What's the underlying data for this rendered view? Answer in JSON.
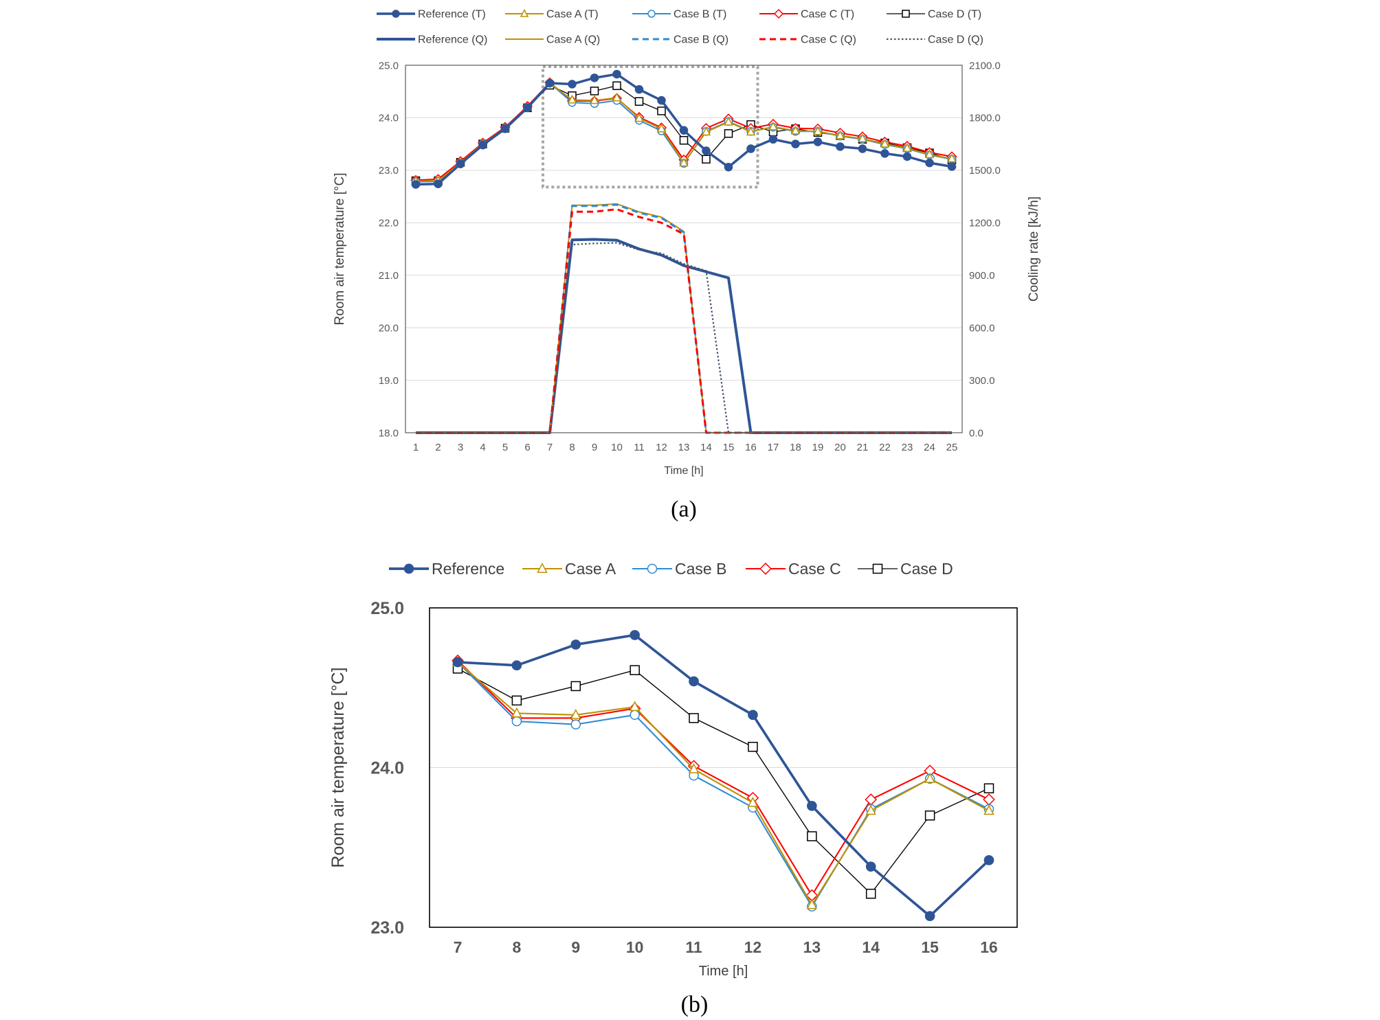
{
  "colors": {
    "reference": "#2F5597",
    "case_a": "#BF9000",
    "case_b": "#2E8BD4",
    "case_c": "#FF0000",
    "case_d": "#000000",
    "case_d_q": "#44546A",
    "grid": "#D9D9D9",
    "zoom_box": "#A6A6A6"
  },
  "chart_data": [
    {
      "type": "line",
      "panel_label": "(a)",
      "xlabel": "Time [h]",
      "ylabel": "Room air temperature  [°C]",
      "y2label": "Cooling rate [kJ/h]",
      "x": [
        1,
        2,
        3,
        4,
        5,
        6,
        7,
        8,
        9,
        10,
        11,
        12,
        13,
        14,
        15,
        16,
        17,
        18,
        19,
        20,
        21,
        22,
        23,
        24,
        25
      ],
      "x_tick_labels": [
        "1",
        "2",
        "3",
        "4",
        "5",
        "6",
        "7",
        "8",
        "9",
        "10",
        "11",
        "12",
        "13",
        "14",
        "15",
        "16",
        "17",
        "18",
        "19",
        "20",
        "21",
        "22",
        "23",
        "24",
        "25"
      ],
      "ylim": [
        18.0,
        25.0
      ],
      "y_tick_labels": [
        "18.0",
        "19.0",
        "20.0",
        "21.0",
        "22.0",
        "23.0",
        "24.0",
        "25.0"
      ],
      "y2lim": [
        0.0,
        2100.0
      ],
      "y2_tick_labels": [
        "0.0",
        "300.0",
        "600.0",
        "900.0",
        "1200.0",
        "1500.0",
        "1800.0",
        "2100.0"
      ],
      "grid": true,
      "legend_position": "top",
      "zoom_box": {
        "x_range": [
          7,
          16
        ],
        "y_range": [
          22.68,
          25.0
        ]
      },
      "series": [
        {
          "name": "Reference (T)",
          "color_key": "reference",
          "axis": "left",
          "style": "solid-thick",
          "marker": "filled-circle",
          "values": [
            22.73,
            22.74,
            23.12,
            23.48,
            23.79,
            24.19,
            24.66,
            24.64,
            24.76,
            24.83,
            24.54,
            24.33,
            23.76,
            23.37,
            23.06,
            23.41,
            23.59,
            23.5,
            23.54,
            23.45,
            23.41,
            23.32,
            23.26,
            23.14,
            23.07
          ]
        },
        {
          "name": "Case A (T)",
          "color_key": "case_a",
          "axis": "left",
          "style": "solid",
          "marker": "open-triangle",
          "values": [
            22.79,
            22.8,
            23.14,
            23.5,
            23.8,
            24.2,
            24.66,
            24.34,
            24.33,
            24.38,
            23.99,
            23.79,
            23.14,
            23.73,
            23.92,
            23.73,
            23.83,
            23.75,
            23.74,
            23.66,
            23.6,
            23.5,
            23.42,
            23.3,
            23.22
          ]
        },
        {
          "name": "Case B (T)",
          "color_key": "case_b",
          "axis": "left",
          "style": "solid",
          "marker": "open-circle",
          "values": [
            22.78,
            22.79,
            23.14,
            23.5,
            23.8,
            24.2,
            24.66,
            24.29,
            24.27,
            24.33,
            23.95,
            23.75,
            23.13,
            23.74,
            23.93,
            23.74,
            23.82,
            23.74,
            23.74,
            23.65,
            23.59,
            23.49,
            23.41,
            23.29,
            23.21
          ]
        },
        {
          "name": "Case C (T)",
          "color_key": "case_c",
          "axis": "left",
          "style": "solid",
          "marker": "open-diamond",
          "values": [
            22.81,
            22.83,
            23.17,
            23.52,
            23.82,
            24.22,
            24.67,
            24.32,
            24.32,
            24.37,
            24.01,
            23.81,
            23.2,
            23.8,
            23.98,
            23.8,
            23.88,
            23.8,
            23.79,
            23.71,
            23.64,
            23.54,
            23.46,
            23.34,
            23.26
          ]
        },
        {
          "name": "Case D (T)",
          "color_key": "case_d",
          "axis": "left",
          "style": "solid-thin",
          "marker": "open-square",
          "values": [
            22.8,
            22.8,
            23.15,
            23.5,
            23.8,
            24.19,
            24.62,
            24.42,
            24.51,
            24.61,
            24.31,
            24.13,
            23.57,
            23.21,
            23.7,
            23.87,
            23.73,
            23.79,
            23.72,
            23.66,
            23.59,
            23.52,
            23.43,
            23.33,
            23.2
          ]
        },
        {
          "name": "Reference (Q)",
          "color_key": "reference",
          "axis": "right",
          "style": "solid-heavy",
          "marker": "none",
          "values": [
            0,
            0,
            0,
            0,
            0,
            0,
            0,
            1102,
            1105,
            1100,
            1050,
            1015,
            955,
            920,
            885,
            0,
            0,
            0,
            0,
            0,
            0,
            0,
            0,
            0,
            0
          ]
        },
        {
          "name": "Case A (Q)",
          "color_key": "case_a",
          "axis": "right",
          "style": "solid",
          "marker": "none",
          "values": [
            0,
            0,
            0,
            0,
            0,
            0,
            0,
            1300,
            1300,
            1308,
            1262,
            1232,
            1150,
            0,
            0,
            0,
            0,
            0,
            0,
            0,
            0,
            0,
            0,
            0,
            0
          ]
        },
        {
          "name": "Case B (Q)",
          "color_key": "case_b",
          "axis": "right",
          "style": "dashed",
          "marker": "none",
          "values": [
            0,
            0,
            0,
            0,
            0,
            0,
            0,
            1296,
            1296,
            1303,
            1257,
            1227,
            1145,
            0,
            0,
            0,
            0,
            0,
            0,
            0,
            0,
            0,
            0,
            0,
            0
          ]
        },
        {
          "name": "Case C (Q)",
          "color_key": "case_c",
          "axis": "right",
          "style": "dashed",
          "marker": "none",
          "values": [
            0,
            0,
            0,
            0,
            0,
            0,
            0,
            1263,
            1263,
            1277,
            1233,
            1200,
            1135,
            0,
            0,
            0,
            0,
            0,
            0,
            0,
            0,
            0,
            0,
            0,
            0
          ]
        },
        {
          "name": "Case D (Q)",
          "color_key": "case_d_q",
          "axis": "right",
          "style": "dotted",
          "marker": "none",
          "values": [
            0,
            0,
            0,
            0,
            0,
            0,
            0,
            1075,
            1082,
            1085,
            1045,
            1025,
            965,
            925,
            0,
            0,
            0,
            0,
            0,
            0,
            0,
            0,
            0,
            0,
            0
          ]
        }
      ]
    },
    {
      "type": "line",
      "panel_label": "(b)",
      "xlabel": "Time [h]",
      "ylabel": "Room air temperature  [°C]",
      "x": [
        7,
        8,
        9,
        10,
        11,
        12,
        13,
        14,
        15,
        16
      ],
      "x_tick_labels": [
        "7",
        "8",
        "9",
        "10",
        "11",
        "12",
        "13",
        "14",
        "15",
        "16"
      ],
      "ylim": [
        23.0,
        25.0
      ],
      "y_tick_labels": [
        "23.0",
        "24.0",
        "25.0"
      ],
      "grid": true,
      "legend_position": "top",
      "series": [
        {
          "name": "Reference",
          "color_key": "reference",
          "style": "solid-thick",
          "marker": "filled-circle",
          "values": [
            24.66,
            24.64,
            24.77,
            24.83,
            24.54,
            24.33,
            23.76,
            23.38,
            23.07,
            23.42
          ]
        },
        {
          "name": "Case A",
          "color_key": "case_a",
          "style": "solid",
          "marker": "open-triangle",
          "values": [
            24.66,
            24.34,
            24.33,
            24.38,
            23.99,
            23.78,
            23.14,
            23.73,
            23.93,
            23.73
          ]
        },
        {
          "name": "Case B",
          "color_key": "case_b",
          "style": "solid",
          "marker": "open-circle",
          "values": [
            24.66,
            24.29,
            24.27,
            24.33,
            23.95,
            23.75,
            23.13,
            23.74,
            23.93,
            23.74
          ]
        },
        {
          "name": "Case C",
          "color_key": "case_c",
          "style": "solid",
          "marker": "open-diamond",
          "values": [
            24.67,
            24.31,
            24.31,
            24.37,
            24.01,
            23.81,
            23.2,
            23.8,
            23.98,
            23.8
          ]
        },
        {
          "name": "Case D",
          "color_key": "case_d",
          "style": "solid-thin",
          "marker": "open-square",
          "values": [
            24.62,
            24.42,
            24.51,
            24.61,
            24.31,
            24.13,
            23.57,
            23.21,
            23.7,
            23.87
          ]
        }
      ]
    }
  ]
}
